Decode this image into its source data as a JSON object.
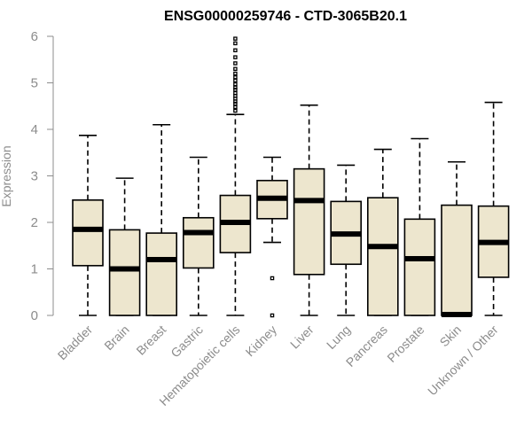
{
  "chart_data": {
    "type": "boxplot",
    "title": "ENSG00000259746 - CTD-3065B20.1",
    "xlabel": "",
    "ylabel": "Expression",
    "ylim": [
      0,
      6
    ],
    "yticks": [
      0,
      1,
      2,
      3,
      4,
      5,
      6
    ],
    "box_color": "#ede6ce",
    "categories": [
      "Bladder",
      "Brain",
      "Breast",
      "Gastric",
      "Hematopoietic cells",
      "Kidney",
      "Liver",
      "Lung",
      "Pancreas",
      "Prostate",
      "Skin",
      "Unknown / Other"
    ],
    "boxes": [
      {
        "name": "Bladder",
        "min": 0,
        "q1": 1.07,
        "median": 1.85,
        "q3": 2.48,
        "max": 3.87,
        "outliers": []
      },
      {
        "name": "Brain",
        "min": 0,
        "q1": 0,
        "median": 1.0,
        "q3": 1.84,
        "max": 2.95,
        "outliers": []
      },
      {
        "name": "Breast",
        "min": 0,
        "q1": 0,
        "median": 1.2,
        "q3": 1.77,
        "max": 4.1,
        "outliers": []
      },
      {
        "name": "Gastric",
        "min": 0,
        "q1": 1.02,
        "median": 1.78,
        "q3": 2.1,
        "max": 3.4,
        "outliers": []
      },
      {
        "name": "Hematopoietic cells",
        "min": 0,
        "q1": 1.35,
        "median": 2.0,
        "q3": 2.58,
        "max": 4.32,
        "outliers": [
          4.4,
          4.48,
          4.55,
          4.6,
          4.66,
          4.72,
          4.78,
          4.85,
          4.9,
          4.97,
          5.05,
          5.12,
          5.2,
          5.3,
          5.42,
          5.55,
          5.7,
          5.85,
          5.95
        ]
      },
      {
        "name": "Kidney",
        "min": 1.57,
        "q1": 2.08,
        "median": 2.52,
        "q3": 2.9,
        "max": 3.4,
        "outliers": [
          0.8,
          0
        ]
      },
      {
        "name": "Liver",
        "min": 0,
        "q1": 0.88,
        "median": 2.47,
        "q3": 3.15,
        "max": 4.52,
        "outliers": []
      },
      {
        "name": "Lung",
        "min": 0,
        "q1": 1.1,
        "median": 1.75,
        "q3": 2.45,
        "max": 3.23,
        "outliers": []
      },
      {
        "name": "Pancreas",
        "min": 0,
        "q1": 0,
        "median": 1.48,
        "q3": 2.53,
        "max": 3.57,
        "outliers": []
      },
      {
        "name": "Prostate",
        "min": 0,
        "q1": 0,
        "median": 1.22,
        "q3": 2.07,
        "max": 3.8,
        "outliers": []
      },
      {
        "name": "Skin",
        "min": 0,
        "q1": 0,
        "median": 0.02,
        "q3": 2.37,
        "max": 3.3,
        "outliers": []
      },
      {
        "name": "Unknown / Other",
        "min": 0,
        "q1": 0.82,
        "median": 1.57,
        "q3": 2.35,
        "max": 4.58,
        "outliers": []
      }
    ]
  }
}
